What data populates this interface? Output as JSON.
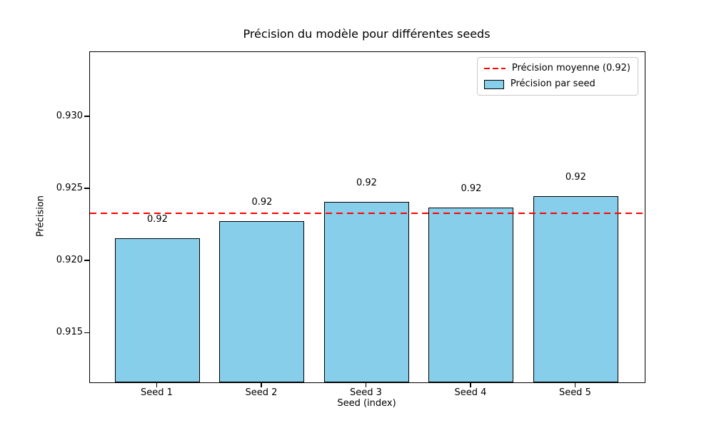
{
  "chart_data": {
    "type": "bar",
    "title": "Précision du modèle pour différentes seeds",
    "xlabel": "Seed (index)",
    "ylabel": "Précision",
    "categories": [
      "Seed 1",
      "Seed 2",
      "Seed 3",
      "Seed 4",
      "Seed 5"
    ],
    "values": [
      0.9216,
      0.9228,
      0.9241,
      0.9237,
      0.9245
    ],
    "bar_value_labels": [
      "0.92",
      "0.92",
      "0.92",
      "0.92",
      "0.92"
    ],
    "mean_line": {
      "value": 0.9233,
      "style": "dashed"
    },
    "ylim": [
      0.9116,
      0.9345
    ],
    "yticks": [
      0.915,
      0.92,
      0.925,
      0.93
    ],
    "ytick_labels": [
      "0.915",
      "0.920",
      "0.925",
      "0.930"
    ],
    "grid": false,
    "legend": {
      "position": "upper right",
      "entries": [
        {
          "label": "Précision moyenne (0.92)",
          "marker": "dashed-line"
        },
        {
          "label": "Précision par seed",
          "marker": "patch"
        }
      ]
    },
    "colors": {
      "bar_fill": "#87ceeb",
      "bar_edge": "#000000",
      "mean_line": "#ff0000",
      "text": "#000000",
      "background": "#ffffff"
    }
  }
}
